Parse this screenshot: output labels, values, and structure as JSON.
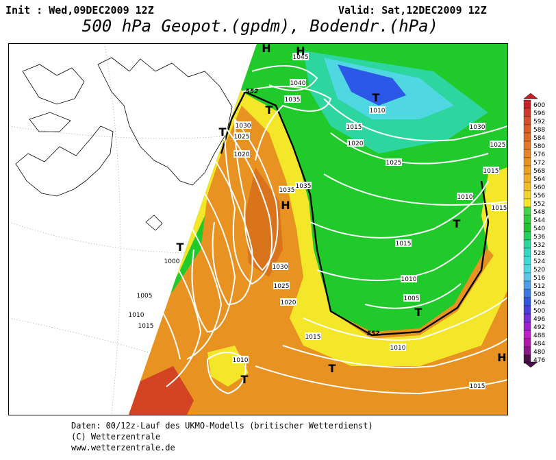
{
  "header": {
    "init": "Init : Wed,09DEC2009 12Z",
    "valid": "Valid: Sat,12DEC2009 12Z",
    "title": "500 hPa Geopot.(gpdm), Bodendr.(hPa)"
  },
  "footer": {
    "line1": "Daten: 00/12z-Lauf des UKMO-Modells (britischer Wetterdienst)",
    "line2": "(C) Wetterzentrale",
    "line3": "www.wetterzentrale.de"
  },
  "colors": {
    "green": "#1fca2a",
    "teal": "#2cd69e",
    "cyan": "#4fd7e2",
    "blue": "#2b58e6",
    "yellow": "#f4e629",
    "orange": "#ec9a22",
    "darkorange": "#d9741c",
    "red": "#d24424"
  },
  "colorbar": {
    "labels": [
      "600",
      "596",
      "592",
      "588",
      "584",
      "580",
      "576",
      "572",
      "568",
      "564",
      "560",
      "556",
      "552",
      "548",
      "544",
      "540",
      "536",
      "532",
      "528",
      "524",
      "520",
      "516",
      "512",
      "508",
      "504",
      "500",
      "496",
      "492",
      "488",
      "484",
      "480",
      "476"
    ],
    "colors": [
      "#c8202a",
      "#d03a2c",
      "#d64e2c",
      "#dc5d2a",
      "#de6a26",
      "#e27826",
      "#e48424",
      "#e89222",
      "#eba020",
      "#efae26",
      "#f1bd26",
      "#f2d22a",
      "#f4e629",
      "#44d44a",
      "#2fcc39",
      "#20c42c",
      "#25cf5c",
      "#2cd69e",
      "#33d8c0",
      "#3ddbd8",
      "#4fd7e2",
      "#5fc4ea",
      "#4e9de8",
      "#3c78e4",
      "#3457e2",
      "#4a3ee0",
      "#7530d8",
      "#9a22d2",
      "#c01ec8",
      "#b01aa8",
      "#8a1888",
      "#4a1048"
    ]
  },
  "isobars": [
    "1045",
    "1040",
    "1035",
    "1030",
    "1025",
    "1020",
    "1035",
    "1035",
    "1030",
    "1025",
    "1020",
    "1015",
    "1010",
    "1005",
    "1000",
    "1010",
    "1015",
    "1010",
    "1015",
    "1020",
    "1025",
    "1030",
    "1025",
    "1015",
    "1010",
    "1015",
    "1010",
    "1005",
    "1015",
    "1010",
    "1015"
  ],
  "contour_labels": [
    "552",
    "552"
  ],
  "pressure_centers": [
    {
      "label": "H"
    },
    {
      "label": "H"
    },
    {
      "label": "H"
    },
    {
      "label": "T"
    },
    {
      "label": "T"
    },
    {
      "label": "T"
    },
    {
      "label": "T"
    },
    {
      "label": "T"
    },
    {
      "label": "T"
    },
    {
      "label": "T"
    },
    {
      "label": "T"
    },
    {
      "label": "H"
    }
  ]
}
